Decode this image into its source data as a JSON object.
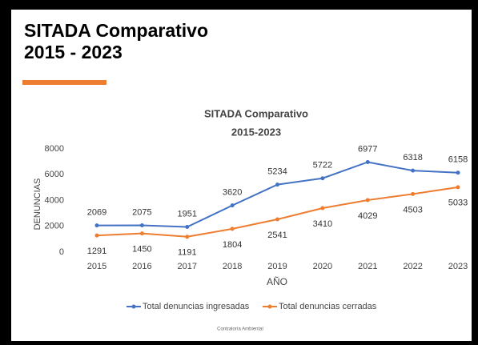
{
  "header": {
    "title": [
      "SITADA Comparativo",
      "2015 - 2023"
    ]
  },
  "chart_data": {
    "type": "line",
    "title": "SITADA Comparativo",
    "subtitle": "2015-2023",
    "x_label": "AÑO",
    "y_label": "DENUNCIAS",
    "categories": [
      "2015",
      "2016",
      "2017",
      "2018",
      "2019",
      "2020",
      "2021",
      "2022",
      "2023"
    ],
    "series": [
      {
        "name": "Total denuncias ingresadas",
        "color": "#4472c4",
        "values": [
          2069,
          2075,
          1951,
          3620,
          5234,
          5722,
          6977,
          6318,
          6158
        ]
      },
      {
        "name": "Total denuncias cerradas",
        "color": "#ed7d31",
        "values": [
          1291,
          1450,
          1191,
          1804,
          2541,
          3410,
          4029,
          4503,
          5033
        ]
      }
    ],
    "ylim": [
      0,
      8000
    ],
    "yticks": [
      0,
      2000,
      4000,
      6000,
      8000
    ],
    "grid": false,
    "legend": "bottom"
  },
  "footer": "Contraloría Ambiental"
}
